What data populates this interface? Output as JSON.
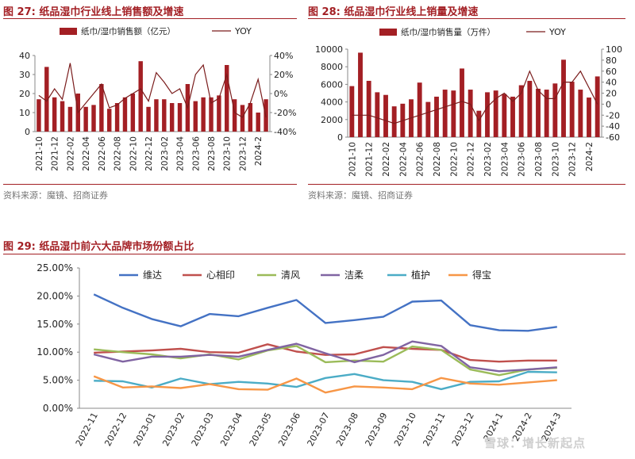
{
  "figures": {
    "fig27": {
      "label": "图 27:",
      "title": "纸品湿巾行业线上销售额及增速",
      "source": "资料来源：魔镜、招商证券"
    },
    "fig28": {
      "label": "图 28:",
      "title": "纸品湿巾行业线上销量及增速",
      "source": "资料来源：魔镜、招商证券"
    },
    "fig29": {
      "label": "图 29:",
      "title": "纸品湿巾前六大品牌市场份额占比"
    }
  },
  "watermark": "雪球：增长新起点",
  "colors": {
    "accent": "#a31f24",
    "bar": "#a31f24",
    "line": "#7a1c1c"
  },
  "chart_data": [
    {
      "id": "fig27",
      "type": "bar",
      "legend": [
        "纸巾/湿巾销售额（亿元）",
        "YOY"
      ],
      "legend_position": "top",
      "x": [
        "2021-10",
        "2021-11",
        "2021-12",
        "2022-01",
        "2022-02",
        "2022-03",
        "2022-04",
        "2022-05",
        "2022-06",
        "2022-07",
        "2022-08",
        "2022-09",
        "2022-10",
        "2022-11",
        "2022-12",
        "2023-01",
        "2023-02",
        "2023-03",
        "2023-04",
        "2023-05",
        "2023-06",
        "2023-07",
        "2023-08",
        "2023-09",
        "2023-10",
        "2023-11",
        "2023-12",
        "2024-1",
        "2024-2",
        "2024-3"
      ],
      "x_tick_labels": [
        "2021-10",
        "2021-12",
        "2022-02",
        "2022-04",
        "2022-06",
        "2022-08",
        "2022-10",
        "2022-12",
        "2023-02",
        "2023-04",
        "2023-06",
        "2023-08",
        "2023-10",
        "2023-12",
        "2024-2"
      ],
      "x_tick_every": 2,
      "series": [
        {
          "name": "纸巾/湿巾销售额（亿元）",
          "kind": "bar",
          "axis": "left",
          "values": [
            17,
            34,
            18,
            16,
            13,
            20,
            13,
            14,
            25,
            12,
            15,
            18,
            20,
            37,
            13,
            17,
            17,
            15,
            15,
            25,
            16,
            18,
            18,
            19,
            35,
            17,
            14,
            15,
            10,
            17
          ]
        },
        {
          "name": "YOY",
          "kind": "line",
          "axis": "right",
          "values": [
            -2,
            -8,
            5,
            -6,
            32,
            -20,
            -10,
            0,
            10,
            -15,
            -12,
            -5,
            0,
            5,
            -8,
            22,
            12,
            0,
            5,
            -15,
            20,
            30,
            -10,
            -5,
            20,
            -20,
            -25,
            -10,
            15,
            -25
          ]
        }
      ],
      "left_axis": {
        "ylim": [
          0,
          40
        ],
        "ticks": [
          "0",
          "10",
          "20",
          "30",
          "40"
        ]
      },
      "right_axis": {
        "ylim": [
          -40,
          40
        ],
        "ticks": [
          "-40%",
          "-20%",
          "0%",
          "20%",
          "40%"
        ]
      },
      "grid": false
    },
    {
      "id": "fig28",
      "type": "bar",
      "legend": [
        "纸巾/湿巾销售量（万件）",
        "YOY"
      ],
      "legend_position": "top",
      "x": [
        "2021-10",
        "2021-11",
        "2021-12",
        "2022-01",
        "2022-02",
        "2022-03",
        "2022-04",
        "2022-05",
        "2022-06",
        "2022-07",
        "2022-08",
        "2022-09",
        "2022-10",
        "2022-11",
        "2022-12",
        "2023-01",
        "2023-02",
        "2023-03",
        "2023-04",
        "2023-05",
        "2023-06",
        "2023-07",
        "2023-08",
        "2023-09",
        "2023-10",
        "2023-11",
        "2023-12",
        "2024-1",
        "2024-2",
        "2024-3"
      ],
      "x_tick_labels": [
        "2021-10",
        "2021-12",
        "2022-02",
        "2022-04",
        "2022-06",
        "2022-08",
        "2022-10",
        "2022-12",
        "2023-02",
        "2023-04",
        "2023-06",
        "2023-08",
        "2023-10",
        "2023-12",
        "2024-2"
      ],
      "x_tick_every": 2,
      "series": [
        {
          "name": "纸巾/湿巾销售量（万件）",
          "kind": "bar",
          "axis": "left",
          "values": [
            5800,
            9600,
            6400,
            5100,
            4800,
            3500,
            3800,
            4300,
            6200,
            4000,
            4600,
            5400,
            5300,
            7800,
            5400,
            3000,
            5100,
            5300,
            4900,
            4600,
            5900,
            6400,
            5500,
            5400,
            6100,
            8800,
            6300,
            5400,
            4500,
            6900
          ]
        },
        {
          "name": "YOY",
          "kind": "line",
          "axis": "right",
          "values": [
            -20,
            -20,
            -20,
            -25,
            -30,
            -35,
            -30,
            -25,
            -20,
            -15,
            -10,
            -5,
            0,
            5,
            0,
            -30,
            -5,
            10,
            20,
            5,
            20,
            60,
            25,
            10,
            10,
            40,
            40,
            60,
            30,
            0
          ]
        }
      ],
      "left_axis": {
        "ylim": [
          0,
          10000
        ],
        "ticks": [
          "0",
          "2000",
          "4000",
          "6000",
          "8000",
          "10000"
        ]
      },
      "right_axis": {
        "ylim": [
          -60,
          100
        ],
        "ticks": [
          "-60",
          "-40",
          "-20",
          "0",
          "20",
          "40",
          "60",
          "80",
          "100"
        ]
      },
      "grid": false
    },
    {
      "id": "fig29",
      "type": "line",
      "legend_position": "top",
      "x": [
        "2022-11",
        "2022-12",
        "2023-01",
        "2023-02",
        "2023-03",
        "2023-04",
        "2023-05",
        "2023-06",
        "2023-07",
        "2023-08",
        "2023-09",
        "2023-10",
        "2023-11",
        "2023-12",
        "2024-1",
        "2024-2",
        "2024-3"
      ],
      "series": [
        {
          "name": "维达",
          "color": "#4472c4",
          "values": [
            20.3,
            17.9,
            15.9,
            14.6,
            16.8,
            16.4,
            17.9,
            19.3,
            15.2,
            15.7,
            16.3,
            19.0,
            19.2,
            14.8,
            13.9,
            13.8,
            14.5
          ]
        },
        {
          "name": "心相印",
          "color": "#c0504d",
          "values": [
            9.9,
            10.1,
            10.3,
            10.6,
            10.0,
            9.9,
            11.4,
            10.1,
            9.5,
            9.6,
            10.9,
            10.6,
            10.4,
            8.6,
            8.3,
            8.5,
            8.5
          ]
        },
        {
          "name": "清风",
          "color": "#9bbb59",
          "values": [
            10.5,
            10.0,
            9.6,
            8.9,
            9.6,
            8.7,
            10.3,
            11.1,
            8.2,
            8.5,
            8.3,
            11.0,
            10.4,
            6.9,
            5.9,
            6.9,
            7.2
          ]
        },
        {
          "name": "洁柔",
          "color": "#8064a2",
          "values": [
            9.6,
            8.3,
            9.2,
            9.2,
            9.5,
            9.2,
            10.4,
            11.5,
            9.8,
            8.2,
            9.5,
            11.9,
            11.1,
            7.3,
            6.6,
            6.9,
            7.3
          ]
        },
        {
          "name": "植护",
          "color": "#4bacc6",
          "values": [
            4.9,
            4.8,
            3.7,
            5.3,
            4.3,
            4.7,
            4.4,
            3.8,
            5.4,
            6.1,
            5.0,
            4.7,
            3.4,
            4.7,
            4.8,
            6.5,
            6.4
          ]
        },
        {
          "name": "得宝",
          "color": "#f79646",
          "values": [
            5.7,
            3.7,
            3.9,
            3.6,
            4.3,
            3.4,
            3.3,
            5.3,
            2.8,
            3.9,
            3.7,
            3.4,
            5.4,
            4.4,
            4.2,
            4.6,
            5.0
          ]
        }
      ],
      "ylim": [
        0,
        25
      ],
      "y_tick_labels": [
        "0.00%",
        "5.00%",
        "10.00%",
        "15.00%",
        "20.00%",
        "25.00%"
      ],
      "grid": false
    }
  ]
}
